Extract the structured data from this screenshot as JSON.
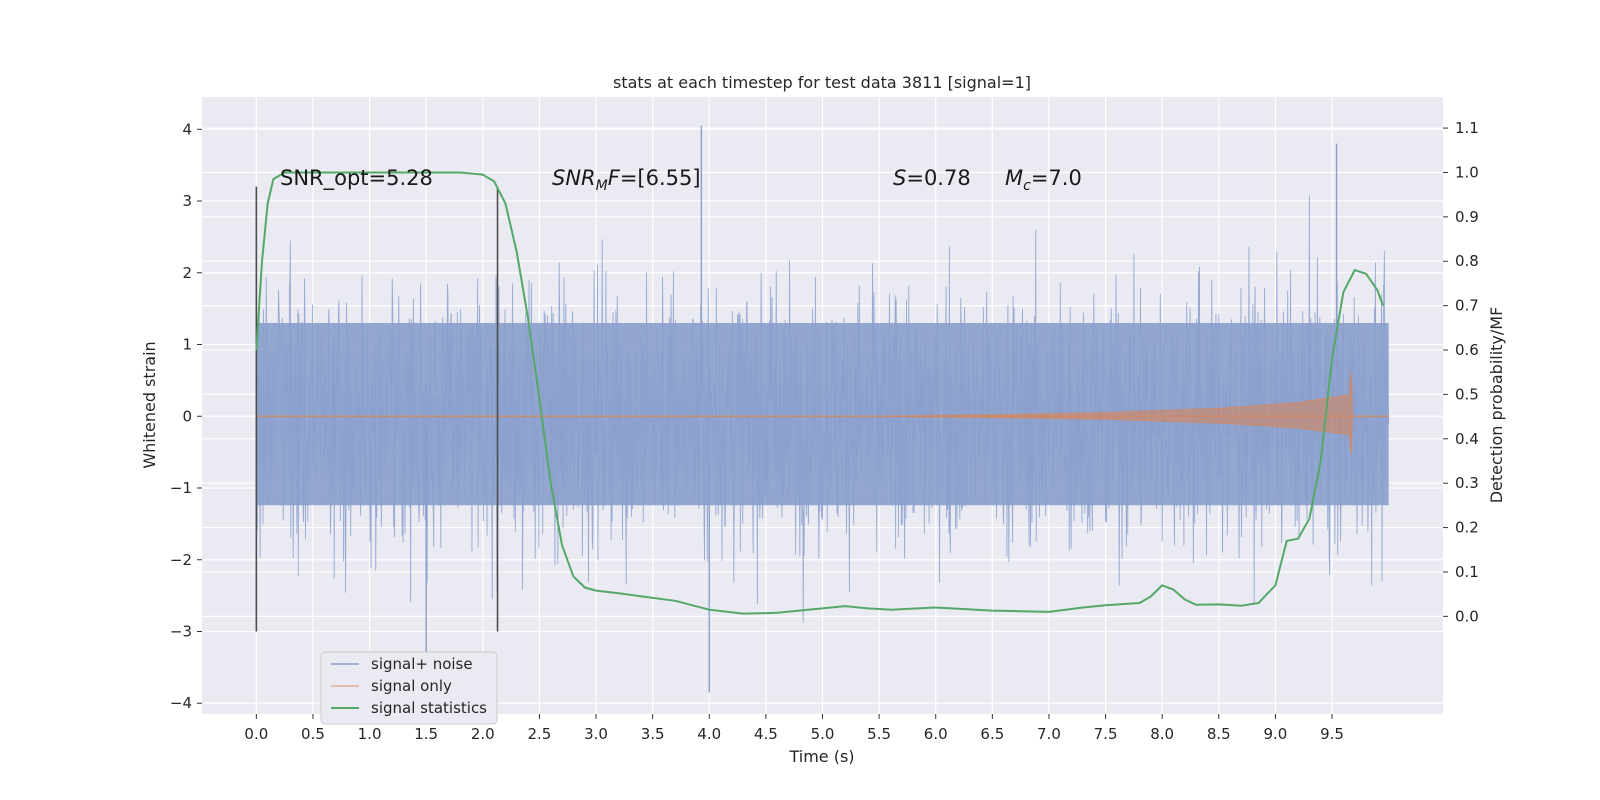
{
  "chart_data": {
    "type": "line",
    "title": "stats at each timestep for test data 3811 [signal=1]",
    "xlabel": "Time (s)",
    "ylabel": "Whitened strain",
    "ylabel_right": "Detection probability/MF",
    "xlim": [
      -0.48,
      10.48
    ],
    "ylim": [
      -4.15,
      4.45
    ],
    "ylim_right": [
      -0.22,
      1.17
    ],
    "x_ticks": [
      "0.0",
      "0.5",
      "1.0",
      "1.5",
      "2.0",
      "2.5",
      "3.0",
      "3.5",
      "4.0",
      "4.5",
      "5.0",
      "5.5",
      "6.0",
      "6.5",
      "7.0",
      "7.5",
      "8.0",
      "8.5",
      "9.0",
      "9.5"
    ],
    "y_ticks": [
      "4",
      "3",
      "2",
      "1",
      "0",
      "−1",
      "−2",
      "−3",
      "−4"
    ],
    "y_right_ticks": [
      "1.1",
      "1.0",
      "0.9",
      "0.8",
      "0.7",
      "0.6",
      "0.5",
      "0.4",
      "0.3",
      "0.2",
      "0.1",
      "0.0"
    ],
    "annotations": [
      {
        "name": "snr-opt",
        "text": "SNR_opt=5.28",
        "x": 0.2,
        "y": 3.18
      },
      {
        "name": "snr-mf",
        "text": "SNR",
        "sub": "M",
        "rest": "F=[6.55]",
        "x": 2.6,
        "y": 3.18,
        "italic": true
      },
      {
        "name": "spin",
        "text": "S",
        "rest": "=0.78",
        "x": 5.6,
        "y": 3.18,
        "italic": true
      },
      {
        "name": "chirp-mass",
        "text": "M",
        "sub": "c",
        "rest": "=7.0",
        "x": 6.6,
        "y": 3.18,
        "italic": true
      }
    ],
    "vlines": [
      {
        "x": 0.0,
        "ymin": -3.0,
        "ymax": 3.2
      },
      {
        "x": 2.13,
        "ymin": -3.0,
        "ymax": 3.2
      }
    ],
    "series": [
      {
        "name": "signal+ noise",
        "color": "#8a9fcc",
        "x_range": [
          0.0,
          10.0
        ],
        "typical_envelope": [
          -1.8,
          2.0
        ],
        "extreme_peaks": [
          {
            "x": 3.93,
            "y": 4.05
          },
          {
            "x": 4.0,
            "y": -3.85
          },
          {
            "x": 1.5,
            "y": -3.35
          },
          {
            "x": 9.54,
            "y": 3.8
          }
        ]
      },
      {
        "name": "signal only",
        "color": "#dd8452",
        "envelope_points": [
          [
            0.0,
            0.0
          ],
          [
            5.5,
            0.0
          ],
          [
            6.5,
            0.02
          ],
          [
            7.5,
            0.05
          ],
          [
            8.5,
            0.11
          ],
          [
            9.2,
            0.19
          ],
          [
            9.65,
            0.3
          ],
          [
            9.67,
            0.62
          ],
          [
            9.68,
            0.0
          ],
          [
            10.0,
            0.0
          ]
        ]
      },
      {
        "name": "signal statistics",
        "color": "#55a868",
        "axis": "right",
        "points": [
          [
            0.0,
            0.6
          ],
          [
            0.05,
            0.8
          ],
          [
            0.1,
            0.93
          ],
          [
            0.15,
            0.985
          ],
          [
            0.25,
            1.0
          ],
          [
            0.5,
            1.0
          ],
          [
            1.0,
            1.0
          ],
          [
            1.5,
            1.0
          ],
          [
            1.8,
            1.0
          ],
          [
            2.0,
            0.995
          ],
          [
            2.1,
            0.98
          ],
          [
            2.2,
            0.93
          ],
          [
            2.3,
            0.82
          ],
          [
            2.4,
            0.67
          ],
          [
            2.5,
            0.49
          ],
          [
            2.6,
            0.3
          ],
          [
            2.7,
            0.16
          ],
          [
            2.8,
            0.09
          ],
          [
            2.9,
            0.065
          ],
          [
            3.0,
            0.058
          ],
          [
            3.2,
            0.052
          ],
          [
            3.4,
            0.045
          ],
          [
            3.7,
            0.035
          ],
          [
            4.0,
            0.015
          ],
          [
            4.3,
            0.006
          ],
          [
            4.6,
            0.008
          ],
          [
            5.0,
            0.018
          ],
          [
            5.2,
            0.023
          ],
          [
            5.4,
            0.018
          ],
          [
            5.6,
            0.015
          ],
          [
            6.0,
            0.02
          ],
          [
            6.5,
            0.013
          ],
          [
            7.0,
            0.01
          ],
          [
            7.3,
            0.02
          ],
          [
            7.5,
            0.025
          ],
          [
            7.8,
            0.03
          ],
          [
            7.9,
            0.045
          ],
          [
            8.0,
            0.07
          ],
          [
            8.1,
            0.06
          ],
          [
            8.2,
            0.038
          ],
          [
            8.3,
            0.026
          ],
          [
            8.5,
            0.027
          ],
          [
            8.7,
            0.024
          ],
          [
            8.85,
            0.03
          ],
          [
            9.0,
            0.07
          ],
          [
            9.1,
            0.17
          ],
          [
            9.2,
            0.175
          ],
          [
            9.3,
            0.22
          ],
          [
            9.4,
            0.35
          ],
          [
            9.5,
            0.58
          ],
          [
            9.6,
            0.73
          ],
          [
            9.7,
            0.78
          ],
          [
            9.8,
            0.772
          ],
          [
            9.9,
            0.735
          ],
          [
            9.95,
            0.7
          ]
        ]
      }
    ],
    "legend": {
      "placement": "lower-left",
      "entries": [
        "signal+ noise",
        "signal only",
        "signal statistics"
      ]
    },
    "grid": true,
    "style": {
      "background": "#eaeaf2",
      "grid_color": "#ffffff"
    }
  }
}
